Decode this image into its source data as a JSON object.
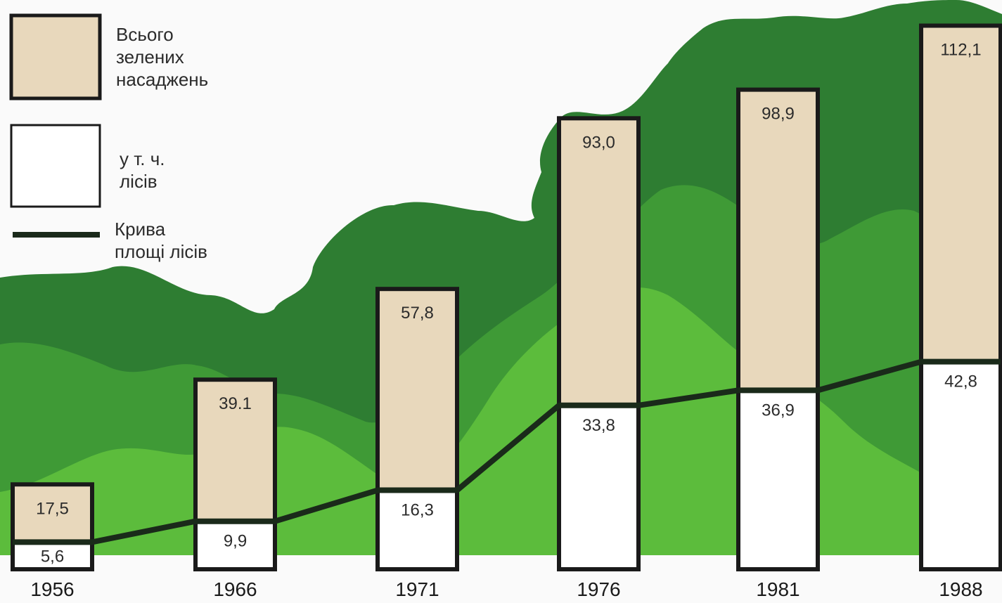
{
  "chart_data": {
    "type": "bar",
    "categories": [
      "1956",
      "1966",
      "1971",
      "1976",
      "1981",
      "1988"
    ],
    "series": [
      {
        "name": "Всього зелених насаджень",
        "values": [
          17.5,
          39.1,
          57.8,
          93.0,
          98.9,
          112.1
        ],
        "labels": [
          "17,5",
          "39.1",
          "57,8",
          "93,0",
          "98,9",
          "112,1"
        ]
      },
      {
        "name": "у т. ч. лісів",
        "values": [
          5.6,
          9.9,
          16.3,
          33.8,
          36.9,
          42.8
        ],
        "labels": [
          "5,6",
          "9,9",
          "16,3",
          "33,8",
          "36,9",
          "42,8"
        ]
      }
    ],
    "line_series": "у т. ч. лісів",
    "legend": {
      "placement": "top-left",
      "items": [
        {
          "lines": [
            "Всього",
            "зелених",
            "насаджень"
          ],
          "swatch": "#e8d8bc"
        },
        {
          "lines": [
            "у т. ч.",
            "лісів"
          ],
          "swatch": "#ffffff"
        },
        {
          "lines": [
            "Крива",
            "площі лісів"
          ],
          "swatch": "line"
        }
      ]
    },
    "title": "",
    "xlabel": "",
    "ylabel": "",
    "grid": false,
    "colors": {
      "total_fill": "#e8d8bc",
      "forest_fill": "#ffffff",
      "bar_stroke": "#1a1a1a",
      "line": "#1a2a1a",
      "dark_green": "#2e7d32",
      "mid_green": "#3f9a36",
      "light_green": "#5cbc3c",
      "background": "#fafafa"
    }
  }
}
